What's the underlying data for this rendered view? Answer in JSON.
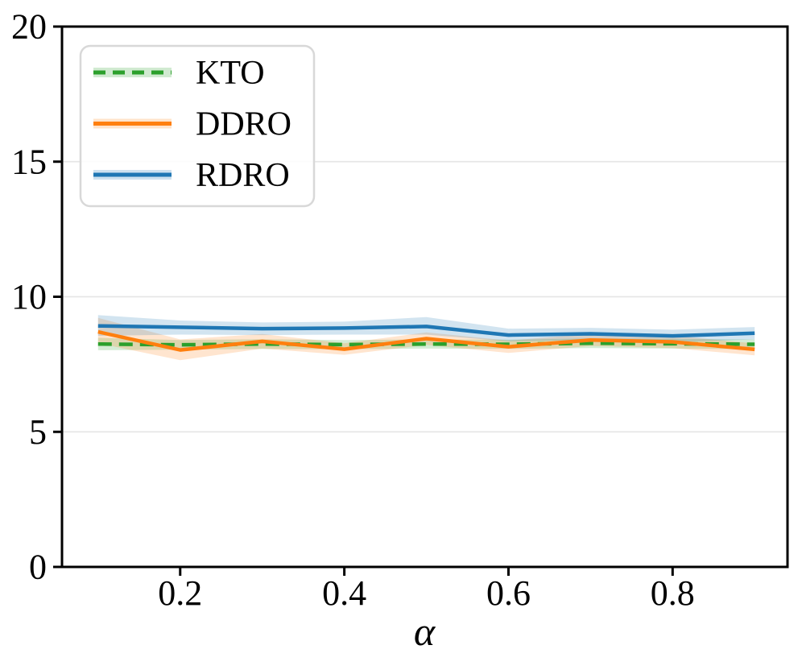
{
  "figure": {
    "background": "#ffffff",
    "plot_background": "#ffffff",
    "grid_color": "#e6e6e6",
    "spine_color": "#000000",
    "legend_border_color": "#d8d8d8"
  },
  "chart_data": {
    "type": "line",
    "title": "",
    "xlabel": "α",
    "ylabel": "",
    "xlim": [
      0.056,
      0.94
    ],
    "ylim": [
      0,
      20
    ],
    "xticks": [
      0.2,
      0.4,
      0.6,
      0.8
    ],
    "xtick_labels": [
      "0.2",
      "0.4",
      "0.6",
      "0.8"
    ],
    "yticks": [
      0,
      5,
      10,
      15,
      20
    ],
    "ytick_labels": [
      "0",
      "5",
      "10",
      "15",
      "20"
    ],
    "grid": "horizontal",
    "legend_position": "upper-left",
    "x": [
      0.1,
      0.2,
      0.3,
      0.4,
      0.5,
      0.6,
      0.7,
      0.8,
      0.9
    ],
    "series": [
      {
        "name": "KTO",
        "color": "#2ca02c",
        "line_style": "dashed",
        "values": [
          8.25,
          8.22,
          8.25,
          8.23,
          8.25,
          8.24,
          8.28,
          8.26,
          8.24
        ],
        "band_lower": [
          8.02,
          8.04,
          8.07,
          8.06,
          8.08,
          8.07,
          8.1,
          8.08,
          8.06
        ],
        "band_upper": [
          8.48,
          8.4,
          8.43,
          8.4,
          8.42,
          8.41,
          8.46,
          8.44,
          8.42
        ]
      },
      {
        "name": "DDRO",
        "color": "#ff7f0e",
        "line_style": "solid",
        "values": [
          8.7,
          8.03,
          8.35,
          8.06,
          8.45,
          8.15,
          8.4,
          8.33,
          8.05
        ],
        "band_lower": [
          8.28,
          7.65,
          8.08,
          7.85,
          8.22,
          7.92,
          8.18,
          8.1,
          7.83
        ],
        "band_upper": [
          9.22,
          8.42,
          8.62,
          8.28,
          8.68,
          8.38,
          8.62,
          8.56,
          8.27
        ]
      },
      {
        "name": "RDRO",
        "color": "#1f77b4",
        "line_style": "solid",
        "values": [
          8.92,
          8.87,
          8.82,
          8.84,
          8.9,
          8.58,
          8.63,
          8.55,
          8.65
        ],
        "band_lower": [
          8.55,
          8.6,
          8.58,
          8.6,
          8.6,
          8.35,
          8.4,
          8.32,
          8.42
        ],
        "band_upper": [
          9.32,
          9.12,
          9.05,
          9.08,
          9.25,
          8.82,
          8.85,
          8.78,
          8.88
        ]
      }
    ]
  }
}
